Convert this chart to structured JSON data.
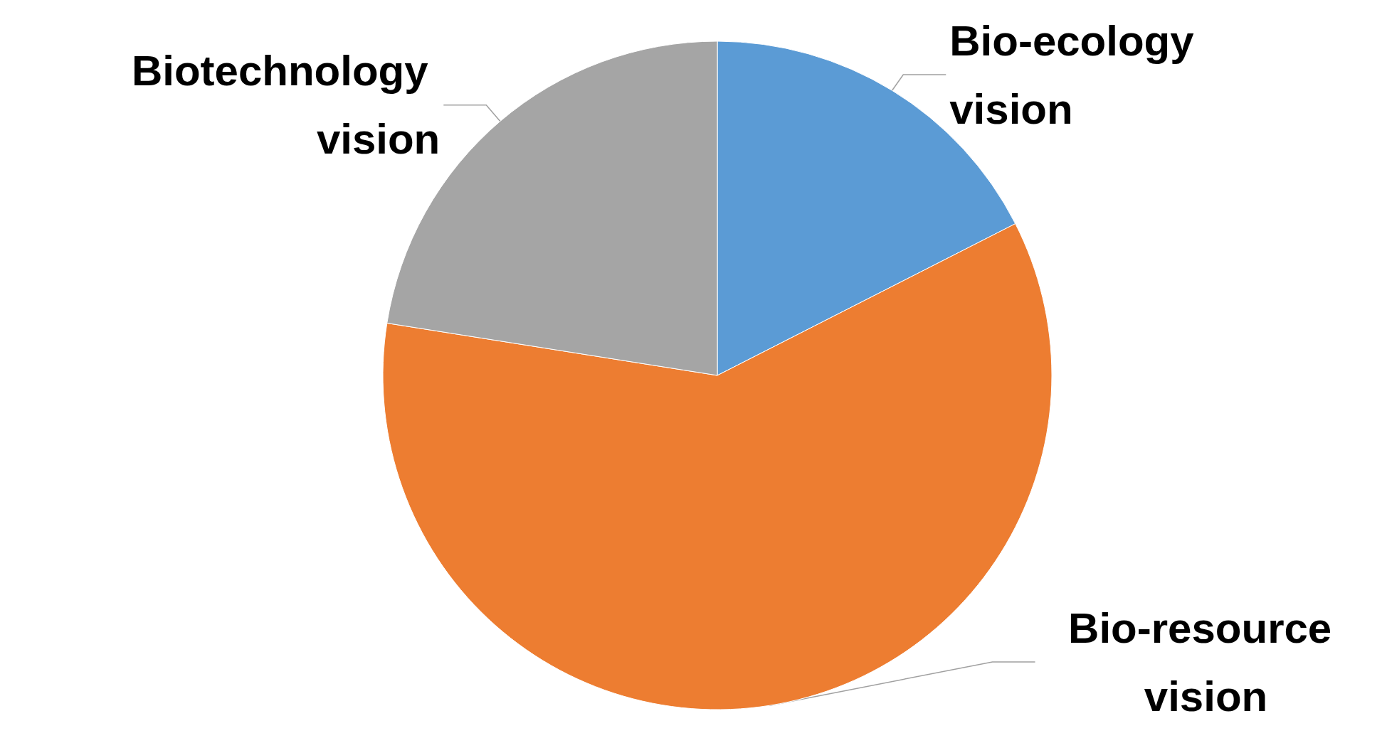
{
  "chart_data": {
    "type": "pie",
    "categories": [
      "Bio-ecology vision",
      "Bio-resource vision",
      "Biotechnology vision"
    ],
    "values": [
      17.5,
      60,
      22.5
    ],
    "colors": [
      "#5b9bd5",
      "#ed7d31",
      "#a5a5a5"
    ]
  }
}
